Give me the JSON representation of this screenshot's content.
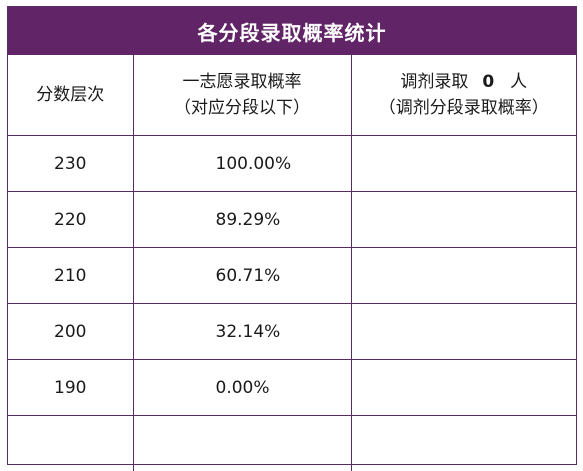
{
  "title": "各分段录取概率统计",
  "headers": {
    "score_level": "分数层次",
    "first_choice_line1": "一志愿录取概率",
    "first_choice_line2": "（对应分段以下）",
    "adjust_prefix": "调剂录取",
    "adjust_count": "0",
    "adjust_suffix": "人",
    "adjust_line2": "（调剂分段录取概率）"
  },
  "rows": [
    {
      "score": "230",
      "rate": "100.00%",
      "adjust": ""
    },
    {
      "score": "220",
      "rate": "89.29%",
      "adjust": ""
    },
    {
      "score": "210",
      "rate": "60.71%",
      "adjust": ""
    },
    {
      "score": "200",
      "rate": "32.14%",
      "adjust": ""
    },
    {
      "score": "190",
      "rate": "0.00%",
      "adjust": ""
    },
    {
      "score": "",
      "rate": "",
      "adjust": ""
    }
  ],
  "colors": {
    "title_background": "#612467",
    "title_text": "#ffffff",
    "border": "#5a2a66"
  }
}
